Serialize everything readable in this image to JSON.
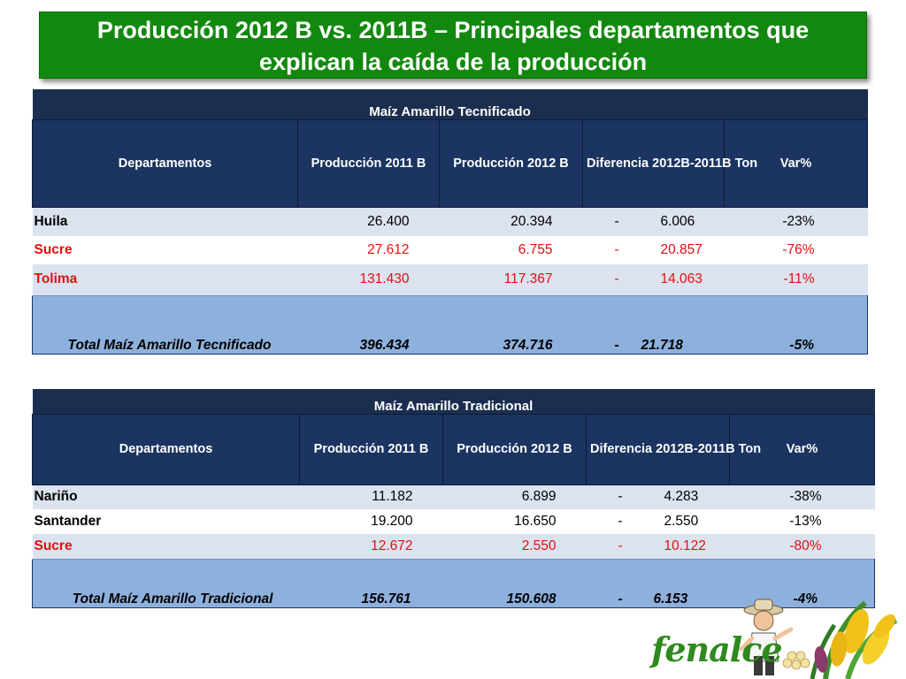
{
  "title": {
    "line1": "Producción 2012 B vs. 2011B – Principales departamentos que",
    "line2": "explican la caída de la producción"
  },
  "colors": {
    "banner_green": "#13880f",
    "header_navy": "#1b3461",
    "total_blue": "#8eb0dc",
    "highlight_red": "#e01010"
  },
  "tecnificado": {
    "caption": "Maíz Amarillo Tecnificado",
    "headers": {
      "dep": "Departamentos",
      "p2011": "Producción  2011 B",
      "p2012": "Producción  2012 B",
      "diff": "Diferencia 2012B-2011B Ton",
      "var": "Var%"
    },
    "rows": [
      {
        "dep": "Huila",
        "p2011": "26.400",
        "p2012": "20.394",
        "sign": "-",
        "diff": "6.006",
        "var": "-23%"
      },
      {
        "dep": "Sucre",
        "p2011": "27.612",
        "p2012": "6.755",
        "sign": "-",
        "diff": "20.857",
        "var": "-76%"
      },
      {
        "dep": "Tolima",
        "p2011": "131.430",
        "p2012": "117.367",
        "sign": "-",
        "diff": "14.063",
        "var": "-11%"
      }
    ],
    "total": {
      "dep": "Total Maíz Amarillo Tecnificado",
      "p2011": "396.434",
      "p2012": "374.716",
      "sign": "-",
      "diff": "21.718",
      "var": "-5%"
    }
  },
  "tradicional": {
    "caption": "Maíz Amarillo Tradicional",
    "headers": {
      "dep": "Departamentos",
      "p2011": "Producción  2011 B",
      "p2012": "Producción  2012 B",
      "diff": "Diferencia 2012B-2011B Ton",
      "var": "Var%"
    },
    "rows": [
      {
        "dep": "Nariño",
        "p2011": "11.182",
        "p2012": "6.899",
        "sign": "-",
        "diff": "4.283",
        "var": "-38%"
      },
      {
        "dep": "Santander",
        "p2011": "19.200",
        "p2012": "16.650",
        "sign": "-",
        "diff": "2.550",
        "var": "-13%"
      },
      {
        "dep": "Sucre",
        "p2011": "12.672",
        "p2012": "2.550",
        "sign": "-",
        "diff": "10.122",
        "var": "-80%"
      }
    ],
    "total": {
      "dep": "Total Maíz Amarillo Tradicional",
      "p2011": "156.761",
      "p2012": "150.608",
      "sign": "-",
      "diff": "6.153",
      "var": "-4%"
    }
  },
  "logo": {
    "text": "fenalce"
  }
}
